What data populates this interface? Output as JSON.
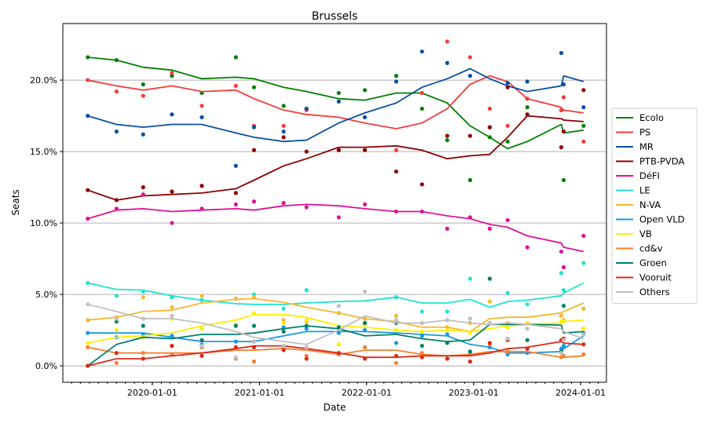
{
  "chart_data": {
    "type": "line",
    "title": "Brussels",
    "xlabel": "Date",
    "ylabel": "Seats",
    "xlim": [
      "2019-03-02",
      "2024-03-29"
    ],
    "ylim": [
      -1.15,
      23.96
    ],
    "x_ticks": [
      "2020-01-01",
      "2021-01-01",
      "2022-01-01",
      "2023-01-01",
      "2024-01-01"
    ],
    "y_ticks": [
      0,
      5,
      10,
      15,
      20
    ],
    "y_tick_labels": [
      "0.0%",
      "5.0%",
      "10.0%",
      "15.0%",
      "20.0%"
    ],
    "grid": "horizontal",
    "legend_position": "right",
    "x": [
      "2019-05-26",
      "2019-09-01",
      "2019-12-01",
      "2020-03-08",
      "2020-06-18",
      "2020-10-12",
      "2020-12-13",
      "2021-03-24",
      "2021-06-10",
      "2021-09-28",
      "2021-12-26",
      "2022-04-12",
      "2022-07-09",
      "2022-10-03",
      "2022-12-20",
      "2023-02-25",
      "2023-04-27",
      "2023-07-03",
      "2023-10-27",
      "2023-11-04",
      "2024-01-11"
    ],
    "series": [
      {
        "name": "Ecolo",
        "color": "#008000",
        "trend": [
          21.6,
          21.4,
          20.9,
          20.7,
          20.1,
          20.2,
          20.1,
          19.5,
          19.2,
          18.7,
          18.6,
          19.1,
          19.1,
          18.4,
          16.8,
          16.0,
          15.2,
          15.7,
          16.9,
          16.3,
          16.5
        ],
        "polls": [
          21.6,
          21.4,
          19.7,
          20.3,
          19.1,
          21.6,
          19.5,
          18.2,
          18.0,
          19.1,
          19.3,
          20.3,
          18.0,
          15.8,
          13.0,
          16.0,
          15.7,
          18.1,
          17.9,
          13.0,
          16.8
        ]
      },
      {
        "name": "PS",
        "color": "#f33b3b",
        "trend": [
          20.0,
          19.6,
          19.3,
          19.6,
          19.2,
          19.3,
          18.7,
          17.9,
          17.6,
          17.4,
          17.0,
          16.6,
          17.0,
          18.0,
          19.7,
          20.3,
          19.9,
          18.7,
          18.1,
          17.9,
          17.7
        ],
        "polls": [
          20.0,
          19.2,
          18.9,
          20.5,
          18.2,
          19.6,
          16.8,
          16.8,
          17.9,
          15.1,
          15.1,
          15.1,
          19.1,
          22.7,
          21.6,
          18.0,
          16.8,
          18.7,
          17.9,
          18.8,
          15.7
        ]
      },
      {
        "name": "MR",
        "color": "#0b4ea2",
        "trend": [
          17.5,
          16.9,
          16.7,
          16.9,
          16.9,
          16.3,
          16.0,
          15.7,
          15.8,
          17.0,
          17.7,
          18.4,
          19.5,
          20.1,
          20.8,
          20.1,
          19.6,
          19.2,
          19.6,
          20.3,
          19.9
        ],
        "polls": [
          17.5,
          16.4,
          16.2,
          17.6,
          17.4,
          14.0,
          16.7,
          16.4,
          18.0,
          18.5,
          17.4,
          19.9,
          22.0,
          21.2,
          20.3,
          16.7,
          19.8,
          19.9,
          21.9,
          19.7,
          18.1
        ]
      },
      {
        "name": "PTB-PVDA",
        "color": "#8b0000",
        "trend": [
          12.3,
          11.6,
          11.9,
          12.0,
          12.1,
          12.4,
          13.0,
          14.0,
          14.5,
          15.3,
          15.3,
          15.4,
          15.1,
          14.5,
          14.7,
          14.8,
          16.0,
          17.5,
          17.3,
          17.2,
          17.1
        ],
        "polls": [
          12.3,
          11.6,
          12.5,
          12.2,
          12.6,
          12.1,
          15.1,
          16.0,
          15.0,
          15.1,
          15.1,
          13.6,
          12.7,
          16.1,
          16.1,
          16.7,
          19.5,
          17.6,
          15.3,
          16.4,
          19.3
        ]
      },
      {
        "name": "DéFI",
        "color": "#dd1199",
        "trend": [
          10.3,
          10.9,
          11.0,
          10.8,
          10.9,
          11.0,
          10.9,
          11.2,
          11.3,
          11.2,
          11.0,
          10.8,
          10.8,
          10.5,
          10.3,
          9.9,
          9.7,
          9.1,
          8.6,
          8.3,
          8.0
        ],
        "polls": [
          10.3,
          11.0,
          12.0,
          10.0,
          11.0,
          11.3,
          11.5,
          11.4,
          11.1,
          10.4,
          11.3,
          10.8,
          10.8,
          9.6,
          10.4,
          9.6,
          10.2,
          8.3,
          8.0,
          6.9,
          9.1
        ]
      },
      {
        "name": "LE",
        "color": "#1fe3d1",
        "trend": [
          5.8,
          5.35,
          5.3,
          4.9,
          4.6,
          4.35,
          4.3,
          4.3,
          4.4,
          4.5,
          4.55,
          4.8,
          4.4,
          4.4,
          4.65,
          4.1,
          4.5,
          4.6,
          4.9,
          5.1,
          5.8
        ],
        "polls": [
          5.8,
          4.9,
          5.2,
          4.8,
          4.6,
          4.7,
          5.0,
          4.0,
          5.3,
          3.7,
          2.9,
          4.8,
          3.8,
          3.8,
          6.1,
          6.1,
          5.1,
          4.3,
          6.5,
          5.3,
          7.2
        ]
      },
      {
        "name": "N-VA",
        "color": "#f5b82e",
        "trend": [
          3.2,
          3.4,
          3.8,
          3.9,
          4.4,
          4.65,
          4.7,
          4.45,
          4.1,
          3.7,
          3.3,
          3.1,
          2.7,
          2.7,
          2.4,
          3.3,
          3.4,
          3.4,
          3.7,
          3.8,
          4.4
        ],
        "polls": [
          3.2,
          3.4,
          4.8,
          4.1,
          4.9,
          4.7,
          4.8,
          3.2,
          3.1,
          3.7,
          3.3,
          3.5,
          3.0,
          2.7,
          3.0,
          4.5,
          3.0,
          3.0,
          3.5,
          3.2,
          4.0
        ]
      },
      {
        "name": "Open VLD",
        "color": "#1a98e0",
        "trend": [
          2.3,
          2.3,
          2.3,
          2.0,
          1.7,
          1.7,
          1.7,
          2.1,
          2.4,
          2.4,
          2.4,
          2.3,
          2.2,
          2.1,
          1.5,
          1.3,
          0.9,
          0.9,
          1.0,
          1.2,
          2.1
        ],
        "polls": [
          2.3,
          2.0,
          2.2,
          2.1,
          1.5,
          1.7,
          1.7,
          2.7,
          2.6,
          2.3,
          2.5,
          1.6,
          2.1,
          2.2,
          0.9,
          1.3,
          0.8,
          0.9,
          1.2,
          1.4,
          2.3
        ]
      },
      {
        "name": "VB",
        "color": "#ffee00",
        "trend": [
          1.6,
          2.0,
          2.1,
          2.3,
          2.8,
          3.2,
          3.6,
          3.6,
          3.4,
          2.8,
          2.7,
          2.5,
          2.4,
          2.5,
          2.4,
          2.6,
          2.8,
          2.9,
          3.0,
          3.1,
          3.2
        ],
        "polls": [
          1.6,
          2.5,
          2.0,
          3.3,
          2.6,
          2.9,
          3.7,
          3.0,
          3.2,
          1.5,
          2.9,
          2.5,
          2.4,
          2.5,
          2.3,
          3.0,
          2.7,
          3.0,
          3.1,
          3.1,
          2.6
        ]
      },
      {
        "name": "cd&v",
        "color": "#f58231",
        "trend": [
          1.3,
          0.9,
          0.9,
          0.9,
          0.9,
          1.1,
          1.1,
          1.2,
          1.1,
          0.8,
          1.1,
          1.1,
          0.8,
          0.7,
          0.8,
          1.0,
          1.0,
          1.0,
          0.6,
          0.6,
          0.7
        ],
        "polls": [
          1.3,
          0.2,
          0.9,
          0.8,
          1.3,
          0.5,
          0.3,
          1.3,
          0.7,
          0.8,
          1.3,
          0.2,
          0.9,
          0.5,
          0.8,
          1.5,
          1.0,
          1.2,
          0.6,
          0.7,
          0.8
        ]
      },
      {
        "name": "Groen",
        "color": "#00806a",
        "trend": [
          0.0,
          1.5,
          2.0,
          1.9,
          2.2,
          2.2,
          2.3,
          2.6,
          2.8,
          2.6,
          2.1,
          2.2,
          1.9,
          1.7,
          1.8,
          2.9,
          2.9,
          2.9,
          2.85,
          2.3,
          2.4
        ],
        "polls": [
          0.0,
          3.1,
          2.8,
          1.4,
          1.8,
          2.8,
          2.8,
          2.4,
          2.8,
          2.7,
          3.0,
          3.0,
          1.4,
          1.6,
          1.0,
          6.1,
          1.9,
          1.8,
          1.0,
          4.2,
          2.2
        ]
      },
      {
        "name": "Vooruit",
        "color": "#dd2a1b",
        "trend": [
          0.0,
          0.5,
          0.5,
          0.7,
          0.9,
          1.2,
          1.4,
          1.4,
          1.2,
          0.9,
          0.6,
          0.6,
          0.7,
          0.7,
          0.7,
          0.9,
          1.2,
          1.3,
          1.7,
          1.6,
          1.5
        ],
        "polls": [
          0.0,
          0.9,
          0.5,
          1.4,
          0.7,
          1.3,
          1.3,
          1.1,
          0.5,
          0.9,
          0.5,
          0.7,
          0.6,
          0.5,
          0.3,
          1.6,
          1.8,
          1.2,
          1.8,
          1.9,
          1.5
        ]
      },
      {
        "name": "Others",
        "color": "#c0c0c0",
        "trend": [
          4.3,
          3.8,
          3.3,
          3.3,
          3.0,
          2.4,
          2.0,
          1.7,
          1.5,
          2.5,
          3.5,
          3.0,
          3.0,
          3.2,
          3.0,
          2.9,
          3.0,
          2.9,
          2.6,
          2.4,
          1.9
        ],
        "polls": [
          4.3,
          3.3,
          3.3,
          3.5,
          1.4,
          0.6,
          1.7,
          1.4,
          1.3,
          4.2,
          5.2,
          3.2,
          3.0,
          3.2,
          3.3,
          3.0,
          1.9,
          2.6,
          0.9,
          1.8,
          2.2
        ]
      }
    ]
  }
}
